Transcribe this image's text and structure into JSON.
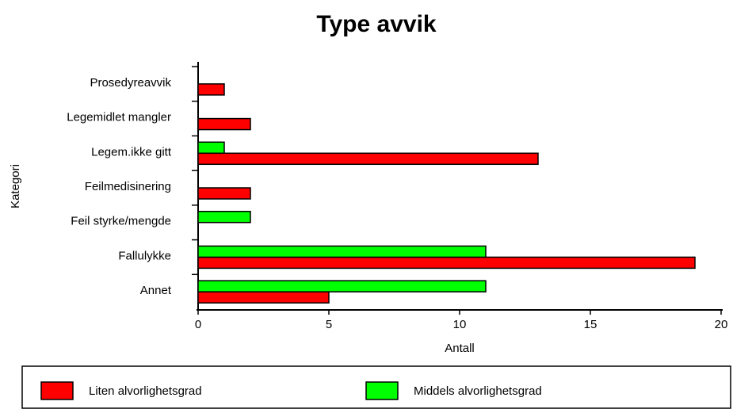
{
  "chart_data": {
    "type": "bar",
    "orientation": "horizontal",
    "title": "Type avvik",
    "x_label": "Antall",
    "y_label": "Kategori",
    "categories": [
      "Prosedyreavvik",
      "Legemidlet mangler",
      "Legem.ikke gitt",
      "Feilmedisinering",
      "Feil styrke/mengde",
      "Fallulykke",
      "Annet"
    ],
    "series": [
      {
        "name": "Liten alvorlighetsgrad",
        "color": "#ff0000",
        "values": [
          1,
          2,
          13,
          2,
          0,
          19,
          5
        ]
      },
      {
        "name": "Middels alvorlighetsgrad",
        "color": "#00ff00",
        "values": [
          0,
          0,
          1,
          0,
          2,
          11,
          11
        ]
      }
    ],
    "xlim": [
      0,
      20
    ],
    "xticks": [
      0,
      5,
      10,
      15,
      20
    ],
    "grid": false,
    "legend": "bottom"
  }
}
